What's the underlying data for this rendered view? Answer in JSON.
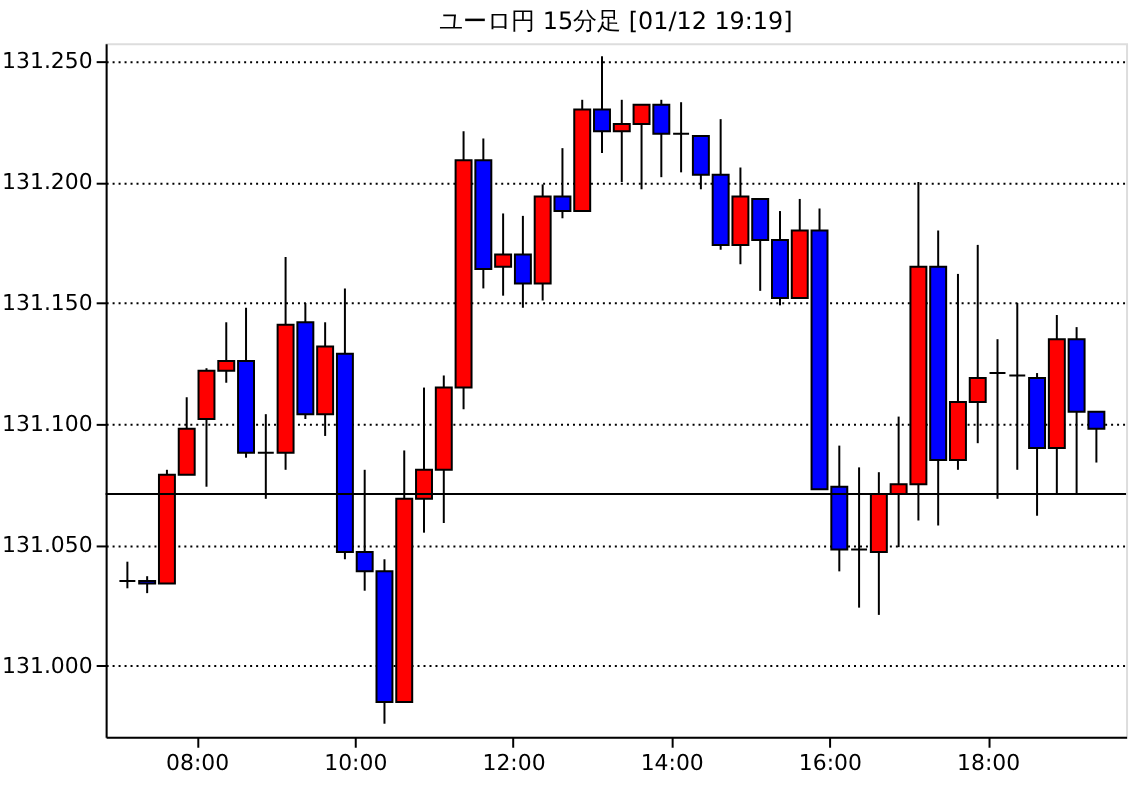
{
  "chart_data": {
    "type": "candlestick",
    "title": "ユーロ円 15分足 [01/12 19:19]",
    "x": [
      7.125,
      7.375,
      7.625,
      7.875,
      8.125,
      8.375,
      8.625,
      8.875,
      9.125,
      9.375,
      9.625,
      9.875,
      10.125,
      10.375,
      10.625,
      10.875,
      11.125,
      11.375,
      11.625,
      11.875,
      12.125,
      12.375,
      12.625,
      12.875,
      13.125,
      13.375,
      13.625,
      13.875,
      14.125,
      14.375,
      14.625,
      14.875,
      15.125,
      15.375,
      15.625,
      15.875,
      16.125,
      16.375,
      16.625,
      16.875,
      17.125,
      17.375,
      17.625,
      17.875,
      18.125,
      18.375,
      18.625,
      18.875,
      19.125,
      19.375
    ],
    "ohlc": [
      [
        131.035,
        131.043,
        131.032,
        131.035
      ],
      [
        131.035,
        131.037,
        131.03,
        131.034
      ],
      [
        131.034,
        131.081,
        131.034,
        131.079
      ],
      [
        131.079,
        131.111,
        131.079,
        131.098
      ],
      [
        131.102,
        131.123,
        131.074,
        131.122
      ],
      [
        131.122,
        131.142,
        131.117,
        131.126
      ],
      [
        131.126,
        131.148,
        131.086,
        131.088
      ],
      [
        131.088,
        131.104,
        131.069,
        131.088
      ],
      [
        131.088,
        131.169,
        131.081,
        131.141
      ],
      [
        131.142,
        131.15,
        131.102,
        131.104
      ],
      [
        131.104,
        131.142,
        131.095,
        131.132
      ],
      [
        131.129,
        131.156,
        131.044,
        131.047
      ],
      [
        131.047,
        131.081,
        131.031,
        131.039
      ],
      [
        131.039,
        131.044,
        130.976,
        130.985
      ],
      [
        130.985,
        131.089,
        130.985,
        131.069
      ],
      [
        131.069,
        131.115,
        131.055,
        131.081
      ],
      [
        131.081,
        131.12,
        131.059,
        131.115
      ],
      [
        131.115,
        131.221,
        131.106,
        131.209
      ],
      [
        131.209,
        131.218,
        131.156,
        131.164
      ],
      [
        131.165,
        131.187,
        131.153,
        131.17
      ],
      [
        131.17,
        131.186,
        131.148,
        131.158
      ],
      [
        131.158,
        131.199,
        131.151,
        131.194
      ],
      [
        131.194,
        131.214,
        131.185,
        131.188
      ],
      [
        131.188,
        131.234,
        131.188,
        131.23
      ],
      [
        131.23,
        131.252,
        131.212,
        131.221
      ],
      [
        131.221,
        131.234,
        131.2,
        131.224
      ],
      [
        131.224,
        131.232,
        131.197,
        131.232
      ],
      [
        131.232,
        131.234,
        131.202,
        131.22
      ],
      [
        131.22,
        131.233,
        131.204,
        131.22
      ],
      [
        131.219,
        131.219,
        131.197,
        131.203
      ],
      [
        131.203,
        131.226,
        131.172,
        131.174
      ],
      [
        131.174,
        131.206,
        131.166,
        131.194
      ],
      [
        131.193,
        131.193,
        131.155,
        131.176
      ],
      [
        131.176,
        131.188,
        131.149,
        131.152
      ],
      [
        131.152,
        131.193,
        131.152,
        131.18
      ],
      [
        131.18,
        131.189,
        131.073,
        131.073
      ],
      [
        131.074,
        131.091,
        131.039,
        131.048
      ],
      [
        131.048,
        131.082,
        131.024,
        131.048
      ],
      [
        131.047,
        131.08,
        131.021,
        131.071
      ],
      [
        131.071,
        131.103,
        131.049,
        131.075
      ],
      [
        131.075,
        131.2,
        131.06,
        131.165
      ],
      [
        131.165,
        131.18,
        131.058,
        131.085
      ],
      [
        131.085,
        131.162,
        131.081,
        131.109
      ],
      [
        131.109,
        131.174,
        131.092,
        131.119
      ],
      [
        131.121,
        131.135,
        131.069,
        131.121
      ],
      [
        131.12,
        131.15,
        131.081,
        131.12
      ],
      [
        131.119,
        131.121,
        131.062,
        131.09
      ],
      [
        131.09,
        131.145,
        131.071,
        131.135
      ],
      [
        131.135,
        131.14,
        131.071,
        131.105
      ],
      [
        131.105,
        131.105,
        131.084,
        131.098
      ]
    ],
    "colors": [
      "#000000",
      "#0000ff",
      "#ff0000",
      "#ff0000",
      "#ff0000",
      "#ff0000",
      "#0000ff",
      "#000000",
      "#ff0000",
      "#0000ff",
      "#ff0000",
      "#0000ff",
      "#0000ff",
      "#0000ff",
      "#ff0000",
      "#ff0000",
      "#ff0000",
      "#ff0000",
      "#0000ff",
      "#ff0000",
      "#0000ff",
      "#ff0000",
      "#0000ff",
      "#ff0000",
      "#0000ff",
      "#ff0000",
      "#ff0000",
      "#0000ff",
      "#000000",
      "#0000ff",
      "#0000ff",
      "#ff0000",
      "#0000ff",
      "#0000ff",
      "#ff0000",
      "#0000ff",
      "#0000ff",
      "#000000",
      "#ff0000",
      "#ff0000",
      "#ff0000",
      "#0000ff",
      "#ff0000",
      "#ff0000",
      "#000000",
      "#000000",
      "#0000ff",
      "#ff0000",
      "#0000ff",
      "#0000ff"
    ],
    "xlim": [
      6.85,
      19.75
    ],
    "xticks": [
      {
        "value": 8,
        "label": "08:00"
      },
      {
        "value": 10,
        "label": "10:00"
      },
      {
        "value": 12,
        "label": "12:00"
      },
      {
        "value": 14,
        "label": "14:00"
      },
      {
        "value": 16,
        "label": "16:00"
      },
      {
        "value": 18,
        "label": "18:00"
      }
    ],
    "ylim": [
      130.9706,
      131.2574
    ],
    "yticks": [
      {
        "value": 131.0,
        "label": "131.000"
      },
      {
        "value": 131.05,
        "label": "131.050"
      },
      {
        "value": 131.1,
        "label": "131.100"
      },
      {
        "value": 131.15,
        "label": "131.150"
      },
      {
        "value": 131.2,
        "label": "131.200"
      },
      {
        "value": 131.25,
        "label": "131.250"
      }
    ],
    "grid": "y",
    "ref_lines": [
      {
        "axis": "y",
        "value": 131.071,
        "color": "#000000",
        "line_style": "solid"
      }
    ]
  }
}
